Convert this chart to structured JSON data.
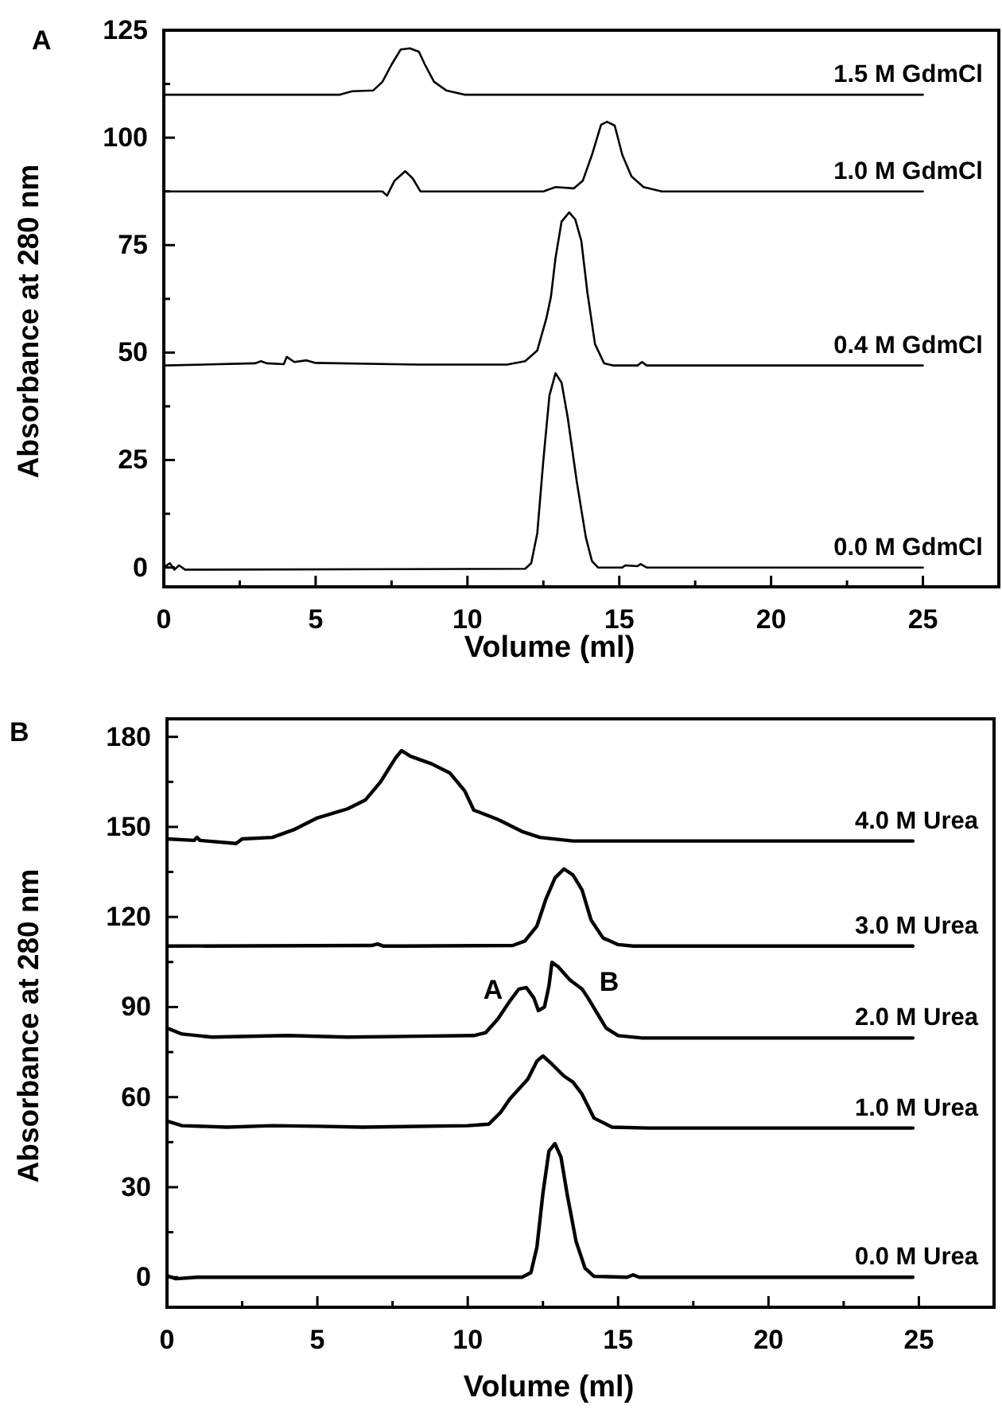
{
  "chart_data": [
    {
      "type": "line",
      "title": "A",
      "xlabel": "Volume (ml)",
      "ylabel": "Absorbance at 280 nm",
      "xlim": [
        0,
        27.5
      ],
      "xticks": [
        0,
        {
          "value": 2.5,
          "label": null
        },
        5,
        {
          "value": 7.5,
          "label": null
        },
        10,
        {
          "value": 12.5,
          "label": null
        },
        15,
        {
          "value": 17.5,
          "label": null
        },
        20,
        {
          "value": 22.5,
          "label": null
        },
        25
      ],
      "ylim": [
        -4.5,
        125
      ],
      "yticks": [
        0,
        {
          "value": 12.5,
          "label": null
        },
        25,
        {
          "value": 37.5,
          "label": null
        },
        50,
        {
          "value": 62.5,
          "label": null
        },
        75,
        {
          "value": 87.5,
          "label": null
        },
        100,
        {
          "value": 112.5,
          "label": null
        },
        125
      ],
      "series": [
        {
          "name": "1.5 M GdmCl",
          "color": "#000000",
          "x": [
            0,
            5.8,
            6.2,
            6.9,
            7.2,
            7.5,
            7.8,
            8.1,
            8.4,
            8.6,
            8.9,
            9.3,
            9.9,
            25
          ],
          "values": [
            110,
            110,
            110.8,
            111,
            113,
            117,
            120.5,
            120.8,
            120,
            117,
            113,
            111,
            110,
            110
          ]
        },
        {
          "name": "1.0 M GdmCl",
          "color": "#000000",
          "x": [
            0,
            7.2,
            7.35,
            7.6,
            7.95,
            8.2,
            8.45,
            12.5,
            12.9,
            13.5,
            13.8,
            14.1,
            14.4,
            14.6,
            14.85,
            15.1,
            15.4,
            15.8,
            16.4,
            25
          ],
          "values": [
            87.5,
            87.5,
            86.5,
            90,
            92.2,
            90.5,
            87.5,
            87.5,
            88.5,
            88.2,
            90,
            96,
            103,
            103.7,
            102.8,
            96,
            91,
            88.5,
            87.5,
            87.5
          ]
        },
        {
          "name": "0.4 M GdmCl",
          "color": "#000000",
          "x": [
            0,
            3.0,
            3.2,
            3.4,
            3.95,
            4.05,
            4.3,
            4.7,
            5.0,
            8.4,
            11.3,
            11.9,
            12.3,
            12.6,
            12.75,
            12.9,
            13.1,
            13.35,
            13.55,
            13.75,
            13.95,
            14.2,
            14.5,
            14.8,
            15.6,
            15.75,
            15.9,
            25
          ],
          "values": [
            47,
            47.5,
            48,
            47.5,
            47.3,
            49,
            47.8,
            48.2,
            47.6,
            47.2,
            47.2,
            48,
            50.5,
            58,
            63,
            72,
            80.5,
            82.6,
            81,
            76,
            64,
            52,
            47.5,
            47,
            47,
            47.8,
            47,
            47
          ]
        },
        {
          "name": "0.0 M GdmCl",
          "color": "#000000",
          "x": [
            0,
            0.2,
            0.35,
            0.5,
            0.7,
            1,
            11.9,
            12.1,
            12.3,
            12.5,
            12.7,
            12.9,
            13.1,
            13.3,
            13.6,
            13.9,
            14.1,
            14.3,
            15.1,
            15.2,
            15.6,
            15.7,
            15.9,
            25
          ],
          "values": [
            0,
            1,
            -0.5,
            0.5,
            -0.5,
            -0.5,
            -0.3,
            1,
            8,
            25,
            40,
            45.2,
            43,
            35,
            20,
            7,
            1.5,
            0,
            0,
            0.5,
            0.3,
            0.8,
            0,
            0
          ]
        }
      ]
    },
    {
      "type": "line",
      "title": "B",
      "xlabel": "Volume (ml)",
      "ylabel": "Absorbance at 280 nm",
      "xlim": [
        0,
        27.5
      ],
      "xticks": [
        0,
        {
          "value": 2.5,
          "label": null
        },
        5,
        {
          "value": 7.5,
          "label": null
        },
        10,
        {
          "value": 12.5,
          "label": null
        },
        15,
        {
          "value": 17.5,
          "label": null
        },
        20,
        {
          "value": 22.5,
          "label": null
        },
        25
      ],
      "ylim": [
        -10,
        186
      ],
      "yticks": [
        0,
        {
          "value": 15,
          "label": null
        },
        30,
        {
          "value": 45,
          "label": null
        },
        60,
        {
          "value": 75,
          "label": null
        },
        90,
        {
          "value": 105,
          "label": null
        },
        120,
        {
          "value": 135,
          "label": null
        },
        150,
        {
          "value": 165,
          "label": null
        },
        180
      ],
      "annotations": [
        "A",
        "B"
      ],
      "series": [
        {
          "name": "4.0 M Urea",
          "color": "#000000",
          "x": [
            0,
            0.9,
            1.0,
            1.1,
            2.3,
            2.5,
            3.5,
            4.2,
            5.0,
            6.0,
            6.6,
            7.1,
            7.6,
            7.8,
            8.1,
            8.8,
            9.4,
            9.9,
            10.2,
            11.0,
            11.8,
            12.4,
            13.5,
            24.8
          ],
          "values": [
            146,
            145.5,
            146.5,
            145.5,
            144.5,
            146,
            146.5,
            149,
            153,
            156,
            159,
            165,
            173,
            175.4,
            173.5,
            171,
            168,
            162,
            155.6,
            152.5,
            148.5,
            146.5,
            145.3,
            145.3
          ]
        },
        {
          "name": "3.0 M Urea",
          "color": "#000000",
          "x": [
            0,
            6.8,
            7.0,
            7.2,
            11.5,
            11.9,
            12.3,
            12.6,
            12.9,
            13.2,
            13.5,
            13.8,
            14.1,
            14.5,
            15.0,
            15.5,
            24.8
          ],
          "values": [
            110.3,
            110.5,
            111,
            110.3,
            110.5,
            112,
            117,
            126,
            133,
            136,
            134,
            129,
            119,
            113,
            110.8,
            110.3,
            110.3
          ]
        },
        {
          "name": "2.0 M Urea",
          "color": "#000000",
          "x": [
            0,
            0.5,
            1.5,
            4,
            6,
            10.2,
            10.6,
            11.0,
            11.4,
            11.7,
            11.95,
            12.2,
            12.35,
            12.55,
            12.7,
            12.8,
            13.0,
            13.4,
            13.8,
            14.0,
            14.3,
            14.6,
            15.0,
            15.8,
            24.8
          ],
          "values": [
            83,
            81,
            80,
            80.5,
            80,
            80.5,
            81.5,
            86,
            92,
            96,
            96.5,
            93,
            88.8,
            90,
            97,
            104.9,
            103.5,
            99,
            96,
            93,
            88,
            83,
            80.5,
            79.7,
            79.7
          ]
        },
        {
          "name": "1.0 M Urea",
          "color": "#000000",
          "x": [
            0,
            0.5,
            2,
            3.5,
            5,
            6.5,
            10,
            10.7,
            11.1,
            11.4,
            12.0,
            12.3,
            12.5,
            12.8,
            13.2,
            13.5,
            13.8,
            14.2,
            14.8,
            16,
            24.8
          ],
          "values": [
            52,
            50.5,
            50,
            50.5,
            50.3,
            50,
            50.5,
            51,
            55,
            59.4,
            66,
            72,
            73.7,
            71,
            67,
            65,
            61,
            53,
            50,
            49.7,
            49.7
          ]
        },
        {
          "name": "0.0 M Urea",
          "color": "#000000",
          "x": [
            0,
            0.3,
            1,
            11.8,
            12.1,
            12.3,
            12.5,
            12.7,
            12.9,
            13.1,
            13.3,
            13.6,
            13.9,
            14.2,
            15.3,
            15.5,
            15.7,
            24.8
          ],
          "values": [
            0.5,
            -0.5,
            0,
            0,
            1.5,
            10,
            28,
            42,
            44.5,
            40,
            28,
            12,
            3,
            0.3,
            0,
            0.8,
            0,
            0
          ]
        }
      ]
    }
  ]
}
